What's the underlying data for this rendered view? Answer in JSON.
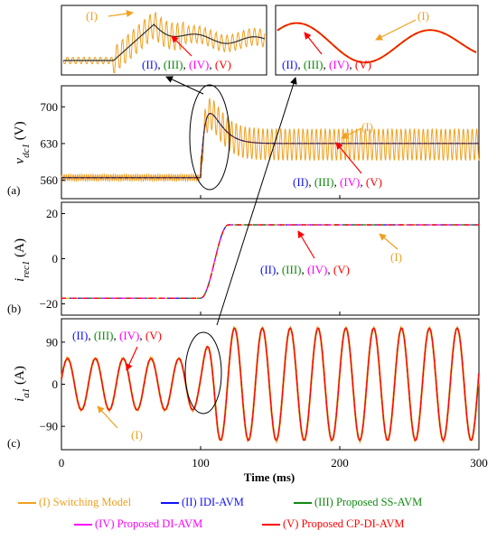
{
  "colors": {
    "I": "#f0a020",
    "II": "#1010ff",
    "III": "#108a10",
    "IV": "#ff00ff",
    "V": "#ff0000",
    "avg": "#303030",
    "arrow_orange": "#f0a020",
    "arrow_red": "#ff0000"
  },
  "xaxis": {
    "label": "Time (ms)",
    "ticks": [
      "0",
      "100",
      "200",
      "300"
    ]
  },
  "labels": {
    "I": "(I)",
    "II": "(II)",
    "III": "(III)",
    "IV": "(IV)",
    "V": "(V)",
    "sep": ","
  },
  "panels": {
    "a": {
      "tag": "(a)",
      "ylabel_main": "v",
      "ylabel_sub": "dc1",
      "ylabel_unit": " (V)",
      "yticks": [
        "700",
        "630",
        "560"
      ]
    },
    "b": {
      "tag": "(b)",
      "ylabel_main": "i",
      "ylabel_sub": "rec1",
      "ylabel_unit": " (A)",
      "yticks": [
        "20",
        "0",
        "−20"
      ]
    },
    "c": {
      "tag": "(c)",
      "ylabel_main": "i",
      "ylabel_sub": "a1",
      "ylabel_unit": " (A)",
      "yticks": [
        "90",
        "0",
        "−90"
      ]
    }
  },
  "legend": [
    {
      "key": "I",
      "label": "(I) Switching Model"
    },
    {
      "key": "II",
      "label": "(II) IDI-AVM"
    },
    {
      "key": "III",
      "label": "(III) Proposed SS-AVM"
    },
    {
      "key": "IV",
      "label": "(IV) Proposed DI-AVM"
    },
    {
      "key": "V",
      "label": "(V) Proposed CP-DI-AVM"
    }
  ],
  "chart_data": [
    {
      "id": "a",
      "type": "line",
      "ylabel": "v_dc1 (V)",
      "xlabel": "Time (ms)",
      "xlim": [
        0,
        300
      ],
      "ylim": [
        525,
        740
      ],
      "x_breakpoint_ms": 100,
      "series": [
        {
          "name": "(I) Switching Model",
          "pre_mean": 565,
          "pre_ripple": 6,
          "peak": 718,
          "post_mean": 628,
          "post_ripple": 30
        },
        {
          "name": "(II) IDI-AVM",
          "pre_mean": 565,
          "peak": 712,
          "post_mean": 630
        },
        {
          "name": "(III) Proposed SS-AVM",
          "pre_mean": 565,
          "peak": 712,
          "post_mean": 630
        },
        {
          "name": "(IV) Proposed DI-AVM",
          "pre_mean": 565,
          "peak": 712,
          "post_mean": 630
        },
        {
          "name": "(V) Proposed CP-DI-AVM",
          "pre_mean": 565,
          "peak": 712,
          "post_mean": 630
        }
      ]
    },
    {
      "id": "b",
      "type": "line",
      "ylabel": "i_rec1 (A)",
      "xlabel": "Time (ms)",
      "xlim": [
        0,
        300
      ],
      "ylim": [
        -25,
        25
      ],
      "series": [
        {
          "name": "(I) Switching Model",
          "pre_value": -17.5,
          "ramp_ms": [
            100,
            120
          ],
          "post_value": 15
        },
        {
          "name": "(II) IDI-AVM",
          "pre_value": -17.5,
          "ramp_ms": [
            100,
            120
          ],
          "post_value": 15
        },
        {
          "name": "(III) Proposed SS-AVM",
          "pre_value": -17.5,
          "ramp_ms": [
            100,
            120
          ],
          "post_value": 15
        },
        {
          "name": "(IV) Proposed DI-AVM",
          "pre_value": -17.5,
          "ramp_ms": [
            100,
            120
          ],
          "post_value": 15
        },
        {
          "name": "(V) Proposed CP-DI-AVM",
          "pre_value": -17.5,
          "ramp_ms": [
            100,
            120
          ],
          "post_value": 15
        }
      ]
    },
    {
      "id": "c",
      "type": "line",
      "ylabel": "i_a1 (A)",
      "xlabel": "Time (ms)",
      "xlim": [
        0,
        300
      ],
      "ylim": [
        -140,
        140
      ],
      "series": [
        {
          "name": "(I) Switching Model",
          "frequency_hz": 50,
          "pre_amplitude": 55,
          "post_amplitude": 120,
          "transition_peak": -115
        },
        {
          "name": "(II) IDI-AVM",
          "frequency_hz": 50,
          "pre_amplitude": 55,
          "post_amplitude": 120
        },
        {
          "name": "(III) Proposed SS-AVM",
          "frequency_hz": 50,
          "pre_amplitude": 55,
          "post_amplitude": 120
        },
        {
          "name": "(IV) Proposed DI-AVM",
          "frequency_hz": 50,
          "pre_amplitude": 55,
          "post_amplitude": 120
        },
        {
          "name": "(V) Proposed CP-DI-AVM",
          "frequency_hz": 50,
          "pre_amplitude": 55,
          "post_amplitude": 120
        }
      ]
    }
  ]
}
